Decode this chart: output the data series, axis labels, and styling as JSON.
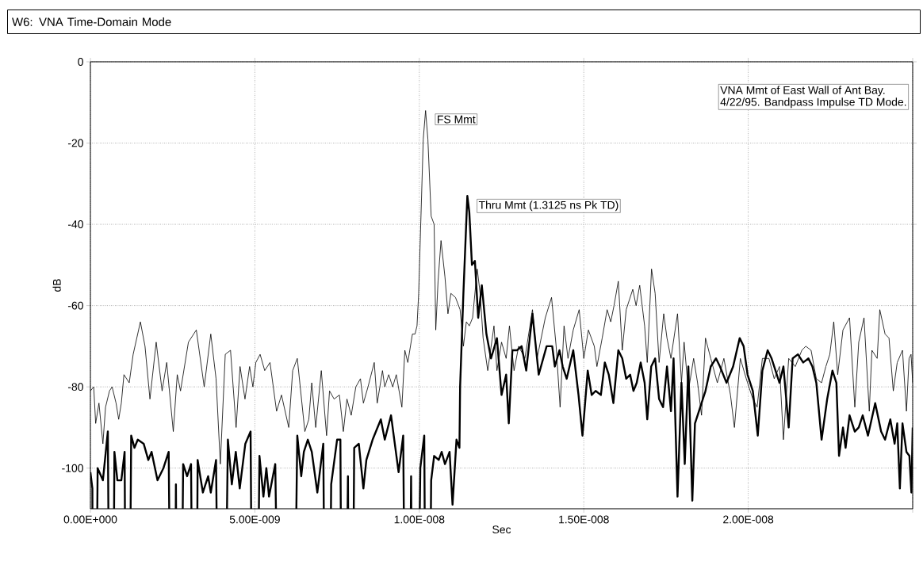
{
  "chart_data": {
    "type": "line",
    "title": "W6: VNA Time-Domain Mode",
    "xlabel": "Sec",
    "ylabel": "dB",
    "xlim": [
      0,
      2.5e-08
    ],
    "ylim": [
      -110,
      0
    ],
    "xticks": [
      {
        "value": 0,
        "label": "0.00E+000"
      },
      {
        "value": 5e-09,
        "label": "5.00E-009"
      },
      {
        "value": 1e-08,
        "label": "1.00E-008"
      },
      {
        "value": 1.5e-08,
        "label": "1.50E-008"
      },
      {
        "value": 2e-08,
        "label": "2.00E-008"
      },
      {
        "value": 2.5e-08,
        "label": null
      }
    ],
    "yticks": [
      0,
      -20,
      -40,
      -60,
      -80,
      -100
    ],
    "grid": true,
    "annotations": [
      "VNA Mmt of East Wall of Ant Bay.",
      "4/22/95. Bandpass Impulse TD Mode.",
      {
        "text": "FS Mmt",
        "x": 1.019e-08,
        "y": -12
      },
      {
        "text": "Thru Mmt (1.3125 ns Pk TD)",
        "x": 1.146e-08,
        "y": -33
      }
    ],
    "series": [
      {
        "color": "#000000",
        "x": [
          0,
          1e-10,
          1.6e-10,
          2.6e-10,
          3.8e-10,
          4.6e-10,
          5.8e-10,
          6.6e-10,
          7.8e-10,
          8.6e-10,
          9.4e-10,
          1.02e-09,
          1.18e-09,
          1.3e-09,
          1.52e-09,
          1.66e-09,
          1.81e-09,
          2e-09,
          2.18e-09,
          2.32e-09,
          2.52e-09,
          2.64e-09,
          2.74e-09,
          2.98e-09,
          3.22e-09,
          3.46e-09,
          3.66e-09,
          3.82e-09,
          3.95e-09,
          4.1e-09,
          4.26e-09,
          4.43e-09,
          4.55e-09,
          4.7e-09,
          4.84e-09,
          4.94e-09,
          5.03e-09,
          5.16e-09,
          5.3e-09,
          5.46e-09,
          5.66e-09,
          5.81e-09,
          6.03e-09,
          6.15e-09,
          6.29e-09,
          6.52e-09,
          6.64e-09,
          6.73e-09,
          6.85e-09,
          7.02e-09,
          7.18e-09,
          7.27e-09,
          7.41e-09,
          7.57e-09,
          7.69e-09,
          7.8e-09,
          7.93e-09,
          8.07e-09,
          8.21e-09,
          8.3e-09,
          8.44e-09,
          8.63e-09,
          8.72e-09,
          8.88e-09,
          8.95e-09,
          9.07e-09,
          9.19e-09,
          9.3e-09,
          9.47e-09,
          9.56e-09,
          9.65e-09,
          9.79e-09,
          9.87e-09,
          9.93e-09,
          9.98e-09,
          1.005e-08,
          1.012e-08,
          1.019e-08,
          1.026e-08,
          1.036e-08,
          1.045e-08,
          1.05e-08,
          1.057e-08,
          1.066e-08,
          1.078e-08,
          1.087e-08,
          1.096e-08,
          1.11e-08,
          1.124e-08,
          1.134e-08,
          1.143e-08,
          1.152e-08,
          1.162e-08,
          1.176e-08,
          1.185e-08,
          1.194e-08,
          1.208e-08,
          1.227e-08,
          1.236e-08,
          1.25e-08,
          1.264e-08,
          1.274e-08,
          1.288e-08,
          1.302e-08,
          1.321e-08,
          1.344e-08,
          1.358e-08,
          1.383e-08,
          1.402e-08,
          1.416e-08,
          1.428e-08,
          1.44e-08,
          1.452e-08,
          1.468e-08,
          1.486e-08,
          1.5e-08,
          1.514e-08,
          1.532e-08,
          1.54e-08,
          1.556e-08,
          1.571e-08,
          1.582e-08,
          1.592e-08,
          1.605e-08,
          1.617e-08,
          1.629e-08,
          1.649e-08,
          1.659e-08,
          1.67e-08,
          1.685e-08,
          1.693e-08,
          1.706e-08,
          1.717e-08,
          1.729e-08,
          1.743e-08,
          1.753e-08,
          1.765e-08,
          1.785e-08,
          1.797e-08,
          1.805e-08,
          1.818e-08,
          1.834e-08,
          1.846e-08,
          1.858e-08,
          1.87e-08,
          1.886e-08,
          1.906e-08,
          1.926e-08,
          1.946e-08,
          1.958e-08,
          1.976e-08,
          1.994e-08,
          2.014e-08,
          2.027e-08,
          2.043e-08,
          2.063e-08,
          2.079e-08,
          2.095e-08,
          2.107e-08,
          2.123e-08,
          2.143e-08,
          2.163e-08,
          2.175e-08,
          2.191e-08,
          2.207e-08,
          2.223e-08,
          2.236e-08,
          2.248e-08,
          2.26e-08,
          2.272e-08,
          2.288e-08,
          2.308e-08,
          2.324e-08,
          2.336e-08,
          2.352e-08,
          2.368e-08,
          2.376e-08,
          2.392e-08,
          2.4e-08,
          2.416e-08,
          2.428e-08,
          2.441e-08,
          2.453e-08,
          2.469e-08,
          2.481e-08,
          2.489e-08,
          2.495e-08,
          2.5e-08
        ],
        "values": [
          -81,
          -80,
          -89,
          -84,
          -94,
          -85,
          -81,
          -80,
          -84,
          -88,
          -84,
          -77,
          -79,
          -72,
          -64,
          -70,
          -83,
          -69,
          -81,
          -74,
          -91,
          -77,
          -81,
          -69,
          -66,
          -80,
          -67,
          -78,
          -99,
          -72,
          -71,
          -90,
          -75,
          -83,
          -75,
          -80,
          -74,
          -72,
          -76,
          -74,
          -86,
          -82,
          -90,
          -76,
          -73,
          -91,
          -88,
          -79,
          -90,
          -76,
          -92,
          -81,
          -83,
          -82,
          -91,
          -83,
          -87,
          -80,
          -78,
          -84,
          -80,
          -74,
          -84,
          -76,
          -80,
          -77,
          -80,
          -77,
          -85,
          -71,
          -74,
          -67,
          -67,
          -65,
          -57,
          -38,
          -19,
          -12,
          -19,
          -38,
          -40,
          -66,
          -54,
          -44,
          -53,
          -62,
          -57,
          -58,
          -61,
          -70,
          -64,
          -65,
          -63,
          -51,
          -57,
          -68,
          -76,
          -65,
          -76,
          -69,
          -73,
          -65,
          -76,
          -70,
          -73,
          -61,
          -73,
          -63,
          -58,
          -70,
          -85,
          -65,
          -73,
          -66,
          -61,
          -73,
          -66,
          -70,
          -75,
          -68,
          -61,
          -64,
          -60,
          -54,
          -71,
          -61,
          -56,
          -60,
          -55,
          -65,
          -74,
          -51,
          -57,
          -74,
          -62,
          -68,
          -73,
          -62,
          -79,
          -69,
          -81,
          -73,
          -79,
          -87,
          -68,
          -73,
          -79,
          -73,
          -82,
          -90,
          -73,
          -78,
          -83,
          -85,
          -73,
          -73,
          -78,
          -75,
          -93,
          -73,
          -75,
          -71,
          -70,
          -71,
          -78,
          -79,
          -75,
          -72,
          -64,
          -77,
          -66,
          -63,
          -85,
          -69,
          -63,
          -86,
          -71,
          -73,
          -61,
          -67,
          -68,
          -81,
          -74,
          -71,
          -86,
          -73,
          -72,
          -79
        ]
      },
      {
        "color": "#000000",
        "x": [
          0,
          6e-11,
          1e-10,
          2.2e-10,
          3.8e-10,
          5.3e-10,
          6.4e-10,
          7.3e-10,
          8.2e-10,
          9.4e-10,
          1.04e-09,
          1.12e-09,
          1.24e-09,
          1.34e-09,
          1.44e-09,
          1.62e-09,
          1.76e-09,
          1.86e-09,
          2.04e-09,
          2.22e-09,
          2.38e-09,
          2.52e-09,
          2.6e-09,
          2.68e-09,
          2.82e-09,
          2.94e-09,
          3.06e-09,
          3.18e-09,
          3.26e-09,
          3.42e-09,
          3.58e-09,
          3.66e-09,
          3.82e-09,
          3.98e-09,
          4.18e-09,
          4.3e-09,
          4.42e-09,
          4.54e-09,
          4.71e-09,
          4.87e-09,
          4.98e-09,
          5.14e-09,
          5.26e-09,
          5.35e-09,
          5.43e-09,
          5.62e-09,
          5.85e-09,
          6.09e-09,
          6.29e-09,
          6.41e-09,
          6.49e-09,
          6.61e-09,
          6.73e-09,
          6.9e-09,
          7.08e-09,
          7.2e-09,
          7.32e-09,
          7.5e-09,
          7.6e-09,
          7.69e-09,
          7.83e-09,
          7.91e-09,
          8.02e-09,
          8.16e-09,
          8.3e-09,
          8.39e-09,
          8.58e-09,
          8.83e-09,
          8.95e-09,
          9.14e-09,
          9.37e-09,
          9.51e-09,
          9.64e-09,
          9.75e-09,
          9.84e-09,
          1.003e-08,
          1.015e-08,
          1.024e-08,
          1.036e-08,
          1.045e-08,
          1.059e-08,
          1.068e-08,
          1.078e-08,
          1.092e-08,
          1.101e-08,
          1.113e-08,
          1.122e-08,
          1.124e-08,
          1.134e-08,
          1.146e-08,
          1.152e-08,
          1.16e-08,
          1.169e-08,
          1.179e-08,
          1.19e-08,
          1.204e-08,
          1.218e-08,
          1.236e-08,
          1.25e-08,
          1.264e-08,
          1.272e-08,
          1.283e-08,
          1.297e-08,
          1.311e-08,
          1.325e-08,
          1.344e-08,
          1.363e-08,
          1.387e-08,
          1.404e-08,
          1.412e-08,
          1.426e-08,
          1.436e-08,
          1.448e-08,
          1.468e-08,
          1.484e-08,
          1.496e-08,
          1.512e-08,
          1.524e-08,
          1.536e-08,
          1.552e-08,
          1.564e-08,
          1.576e-08,
          1.59e-08,
          1.605e-08,
          1.617e-08,
          1.629e-08,
          1.641e-08,
          1.651e-08,
          1.661e-08,
          1.673e-08,
          1.685e-08,
          1.693e-08,
          1.705e-08,
          1.717e-08,
          1.729e-08,
          1.741e-08,
          1.753e-08,
          1.765e-08,
          1.773e-08,
          1.785e-08,
          1.797e-08,
          1.807e-08,
          1.818e-08,
          1.83e-08,
          1.838e-08,
          1.854e-08,
          1.87e-08,
          1.886e-08,
          1.902e-08,
          1.914e-08,
          1.934e-08,
          1.954e-08,
          1.974e-08,
          1.986e-08,
          1.998e-08,
          2.014e-08,
          2.029e-08,
          2.043e-08,
          2.059e-08,
          2.071e-08,
          2.083e-08,
          2.095e-08,
          2.107e-08,
          2.123e-08,
          2.135e-08,
          2.151e-08,
          2.167e-08,
          2.183e-08,
          2.195e-08,
          2.207e-08,
          2.223e-08,
          2.24e-08,
          2.256e-08,
          2.268e-08,
          2.276e-08,
          2.288e-08,
          2.296e-08,
          2.308e-08,
          2.324e-08,
          2.336e-08,
          2.348e-08,
          2.364e-08,
          2.386e-08,
          2.404e-08,
          2.416e-08,
          2.432e-08,
          2.445e-08,
          2.453e-08,
          2.461e-08,
          2.469e-08,
          2.481e-08,
          2.49e-08,
          2.496e-08,
          2.5e-08
        ],
        "values": [
          -101,
          -105,
          null,
          -100,
          -103,
          -91,
          null,
          -96,
          -103,
          -103,
          -96,
          null,
          -92,
          -95,
          -93,
          -94,
          -98,
          -96,
          -103,
          -100,
          -96,
          null,
          -104,
          null,
          -99,
          -102,
          -99,
          null,
          -98,
          -106,
          -102,
          -106,
          -98,
          null,
          -93,
          -104,
          -96,
          -105,
          -94,
          -91,
          null,
          -97,
          -107,
          -100,
          -107,
          -99,
          null,
          null,
          -92,
          -102,
          -96,
          -93,
          -96,
          -106,
          -94,
          null,
          -104,
          -93,
          -93,
          null,
          -102,
          null,
          -95,
          -94,
          -105,
          -98,
          -93,
          -88,
          -93,
          -87,
          -101,
          -92,
          null,
          -102,
          null,
          -100,
          -92,
          null,
          -103,
          -97,
          -98,
          -96,
          -99,
          -96,
          -109,
          -93,
          -95,
          -80,
          -57,
          -33,
          -37,
          -50,
          -49,
          -63,
          -55,
          -67,
          -73,
          -68,
          -82,
          -77,
          -89,
          -71,
          -71,
          -70,
          -76,
          -62,
          -77,
          -70,
          -70,
          -75,
          -71,
          -75,
          -78,
          -71,
          -82,
          -92,
          -76,
          -82,
          -81,
          -82,
          -74,
          -77,
          -84,
          -71,
          -73,
          -78,
          -77,
          -81,
          -79,
          -74,
          -79,
          -88,
          -75,
          -73,
          -83,
          -85,
          -75,
          -86,
          -73,
          -107,
          -79,
          -99,
          -75,
          -108,
          -89,
          -85,
          -81,
          -75,
          -73,
          -75,
          -79,
          -75,
          -68,
          -70,
          -77,
          -81,
          -92,
          -76,
          -71,
          -73,
          -76,
          -79,
          -75,
          -90,
          -73,
          -72,
          -74,
          -73,
          -75,
          -79,
          -93,
          -83,
          -76,
          -79,
          -97,
          -90,
          -95,
          -87,
          -91,
          -90,
          -87,
          -92,
          -84,
          -91,
          -93,
          -88,
          -94,
          -89,
          -105,
          -89,
          -96,
          -97,
          -106,
          -90
        ]
      }
    ]
  }
}
